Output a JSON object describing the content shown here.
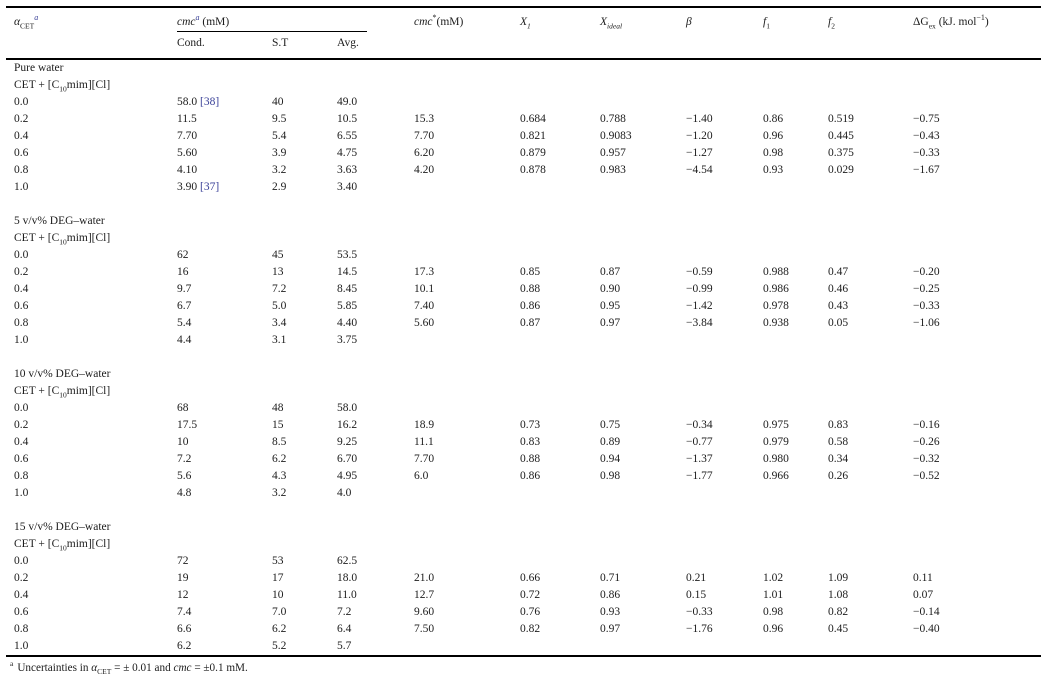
{
  "page": {
    "background": "#ffffff",
    "text_color": "#1c1c1c",
    "link_color": "#3a4198",
    "rule_color": "#000000"
  },
  "table": {
    "header": {
      "alpha": {
        "base": "α",
        "sub": "CET",
        "sup": "a"
      },
      "cmc_group": {
        "base": "cmc",
        "sup": "a",
        "unit": " (mM)"
      },
      "sub_headers": {
        "cond": "Cond.",
        "st": "S.T",
        "avg": "Avg."
      },
      "cmc_star": {
        "base": "cmc",
        "sup": "*",
        "unit": "(mM)"
      },
      "x1": {
        "base": "X",
        "sub": "1"
      },
      "x_ideal": {
        "base": "X",
        "sub": "ideal"
      },
      "beta": {
        "base": "β"
      },
      "f1": {
        "base": "f",
        "sub": "1"
      },
      "f2": {
        "base": "f",
        "sub": "2"
      },
      "dgex": {
        "base": "ΔG",
        "sub": "ex",
        "unit_pre": " (kJ. mol",
        "sup": "−1",
        "unit_post": ")"
      }
    },
    "system_label": {
      "pre": "CET + [C",
      "sub": "10",
      "post": "mim][Cl]"
    },
    "sections": [
      {
        "title": "Pure water",
        "rows": [
          {
            "alpha": "0.0",
            "cond": "58.0",
            "cond_ref": "[38]",
            "st": "40",
            "avg": "49.0",
            "cmcstar": "",
            "x1": "",
            "xideal": "",
            "beta": "",
            "f1": "",
            "f2": "",
            "dgex": ""
          },
          {
            "alpha": "0.2",
            "cond": "11.5",
            "st": "9.5",
            "avg": "10.5",
            "cmcstar": "15.3",
            "x1": "0.684",
            "xideal": "0.788",
            "beta": "−1.40",
            "f1": "0.86",
            "f2": "0.519",
            "dgex": "−0.75"
          },
          {
            "alpha": "0.4",
            "cond": "7.70",
            "st": "5.4",
            "avg": "6.55",
            "cmcstar": "7.70",
            "x1": "0.821",
            "xideal": "0.9083",
            "beta": "−1.20",
            "f1": "0.96",
            "f2": "0.445",
            "dgex": "−0.43"
          },
          {
            "alpha": "0.6",
            "cond": "5.60",
            "st": "3.9",
            "avg": "4.75",
            "cmcstar": "6.20",
            "x1": "0.879",
            "xideal": "0.957",
            "beta": "−1.27",
            "f1": "0.98",
            "f2": "0.375",
            "dgex": "−0.33"
          },
          {
            "alpha": "0.8",
            "cond": "4.10",
            "st": "3.2",
            "avg": "3.63",
            "cmcstar": "4.20",
            "x1": "0.878",
            "xideal": "0.983",
            "beta": "−4.54",
            "f1": "0.93",
            "f2": "0.029",
            "dgex": "−1.67"
          },
          {
            "alpha": "1.0",
            "cond": "3.90",
            "cond_ref": "[37]",
            "st": "2.9",
            "avg": "3.40",
            "cmcstar": "",
            "x1": "",
            "xideal": "",
            "beta": "",
            "f1": "",
            "f2": "",
            "dgex": ""
          }
        ]
      },
      {
        "title": "5 v/v% DEG–water",
        "rows": [
          {
            "alpha": "0.0",
            "cond": "62",
            "st": "45",
            "avg": "53.5",
            "cmcstar": "",
            "x1": "",
            "xideal": "",
            "beta": "",
            "f1": "",
            "f2": "",
            "dgex": ""
          },
          {
            "alpha": "0.2",
            "cond": "16",
            "st": "13",
            "avg": "14.5",
            "cmcstar": "17.3",
            "x1": "0.85",
            "xideal": "0.87",
            "beta": "−0.59",
            "f1": "0.988",
            "f2": "0.47",
            "dgex": "−0.20"
          },
          {
            "alpha": "0.4",
            "cond": "9.7",
            "st": "7.2",
            "avg": "8.45",
            "cmcstar": "10.1",
            "x1": "0.88",
            "xideal": "0.90",
            "beta": "−0.99",
            "f1": "0.986",
            "f2": "0.46",
            "dgex": "−0.25"
          },
          {
            "alpha": "0.6",
            "cond": "6.7",
            "st": "5.0",
            "avg": "5.85",
            "cmcstar": "7.40",
            "x1": "0.86",
            "xideal": "0.95",
            "beta": "−1.42",
            "f1": "0.978",
            "f2": "0.43",
            "dgex": "−0.33"
          },
          {
            "alpha": "0.8",
            "cond": "5.4",
            "st": "3.4",
            "avg": "4.40",
            "cmcstar": "5.60",
            "x1": "0.87",
            "xideal": "0.97",
            "beta": "−3.84",
            "f1": "0.938",
            "f2": "0.05",
            "dgex": "−1.06"
          },
          {
            "alpha": "1.0",
            "cond": "4.4",
            "st": "3.1",
            "avg": "3.75",
            "cmcstar": "",
            "x1": "",
            "xideal": "",
            "beta": "",
            "f1": "",
            "f2": "",
            "dgex": ""
          }
        ]
      },
      {
        "title": "10 v/v% DEG–water",
        "rows": [
          {
            "alpha": "0.0",
            "cond": "68",
            "st": "48",
            "avg": "58.0",
            "cmcstar": "",
            "x1": "",
            "xideal": "",
            "beta": "",
            "f1": "",
            "f2": "",
            "dgex": ""
          },
          {
            "alpha": "0.2",
            "cond": "17.5",
            "st": "15",
            "avg": "16.2",
            "cmcstar": "18.9",
            "x1": "0.73",
            "xideal": "0.75",
            "beta": "−0.34",
            "f1": "0.975",
            "f2": "0.83",
            "dgex": "−0.16"
          },
          {
            "alpha": "0.4",
            "cond": "10",
            "st": "8.5",
            "avg": "9.25",
            "cmcstar": "11.1",
            "x1": "0.83",
            "xideal": "0.89",
            "beta": "−0.77",
            "f1": "0.979",
            "f2": "0.58",
            "dgex": "−0.26"
          },
          {
            "alpha": "0.6",
            "cond": "7.2",
            "st": "6.2",
            "avg": "6.70",
            "cmcstar": "7.70",
            "x1": "0.88",
            "xideal": "0.94",
            "beta": "−1.37",
            "f1": "0.980",
            "f2": "0.34",
            "dgex": "−0.32"
          },
          {
            "alpha": "0.8",
            "cond": "5.6",
            "st": "4.3",
            "avg": "4.95",
            "cmcstar": "6.0",
            "x1": "0.86",
            "xideal": "0.98",
            "beta": "−1.77",
            "f1": "0.966",
            "f2": "0.26",
            "dgex": "−0.52"
          },
          {
            "alpha": "1.0",
            "cond": "4.8",
            "st": "3.2",
            "avg": "4.0",
            "cmcstar": "",
            "x1": "",
            "xideal": "",
            "beta": "",
            "f1": "",
            "f2": "",
            "dgex": ""
          }
        ]
      },
      {
        "title": "15 v/v% DEG–water",
        "rows": [
          {
            "alpha": "0.0",
            "cond": "72",
            "st": "53",
            "avg": "62.5",
            "cmcstar": "",
            "x1": "",
            "xideal": "",
            "beta": "",
            "f1": "",
            "f2": "",
            "dgex": ""
          },
          {
            "alpha": "0.2",
            "cond": "19",
            "st": "17",
            "avg": "18.0",
            "cmcstar": "21.0",
            "x1": "0.66",
            "xideal": "0.71",
            "beta": "0.21",
            "f1": "1.02",
            "f2": "1.09",
            "dgex": "0.11"
          },
          {
            "alpha": "0.4",
            "cond": "12",
            "st": "10",
            "avg": "11.0",
            "cmcstar": "12.7",
            "x1": "0.72",
            "xideal": "0.86",
            "beta": "0.15",
            "f1": "1.01",
            "f2": "1.08",
            "dgex": "0.07"
          },
          {
            "alpha": "0.6",
            "cond": "7.4",
            "st": "7.0",
            "avg": "7.2",
            "cmcstar": "9.60",
            "x1": "0.76",
            "xideal": "0.93",
            "beta": "−0.33",
            "f1": "0.98",
            "f2": "0.82",
            "dgex": "−0.14"
          },
          {
            "alpha": "0.8",
            "cond": "6.6",
            "st": "6.2",
            "avg": "6.4",
            "cmcstar": "7.50",
            "x1": "0.82",
            "xideal": "0.97",
            "beta": "−1.76",
            "f1": "0.96",
            "f2": "0.45",
            "dgex": "−0.40"
          },
          {
            "alpha": "1.0",
            "cond": "6.2",
            "st": "5.2",
            "avg": "5.7",
            "cmcstar": "",
            "x1": "",
            "xideal": "",
            "beta": "",
            "f1": "",
            "f2": "",
            "dgex": ""
          }
        ]
      }
    ],
    "footnote": {
      "marker": "a",
      "part1": "Uncertainties in ",
      "alpha_base": "α",
      "alpha_sub": "CET",
      "part2": " = ± 0.01 and ",
      "cmc": "cmc",
      "part3": " = ±0.1 mM."
    }
  }
}
